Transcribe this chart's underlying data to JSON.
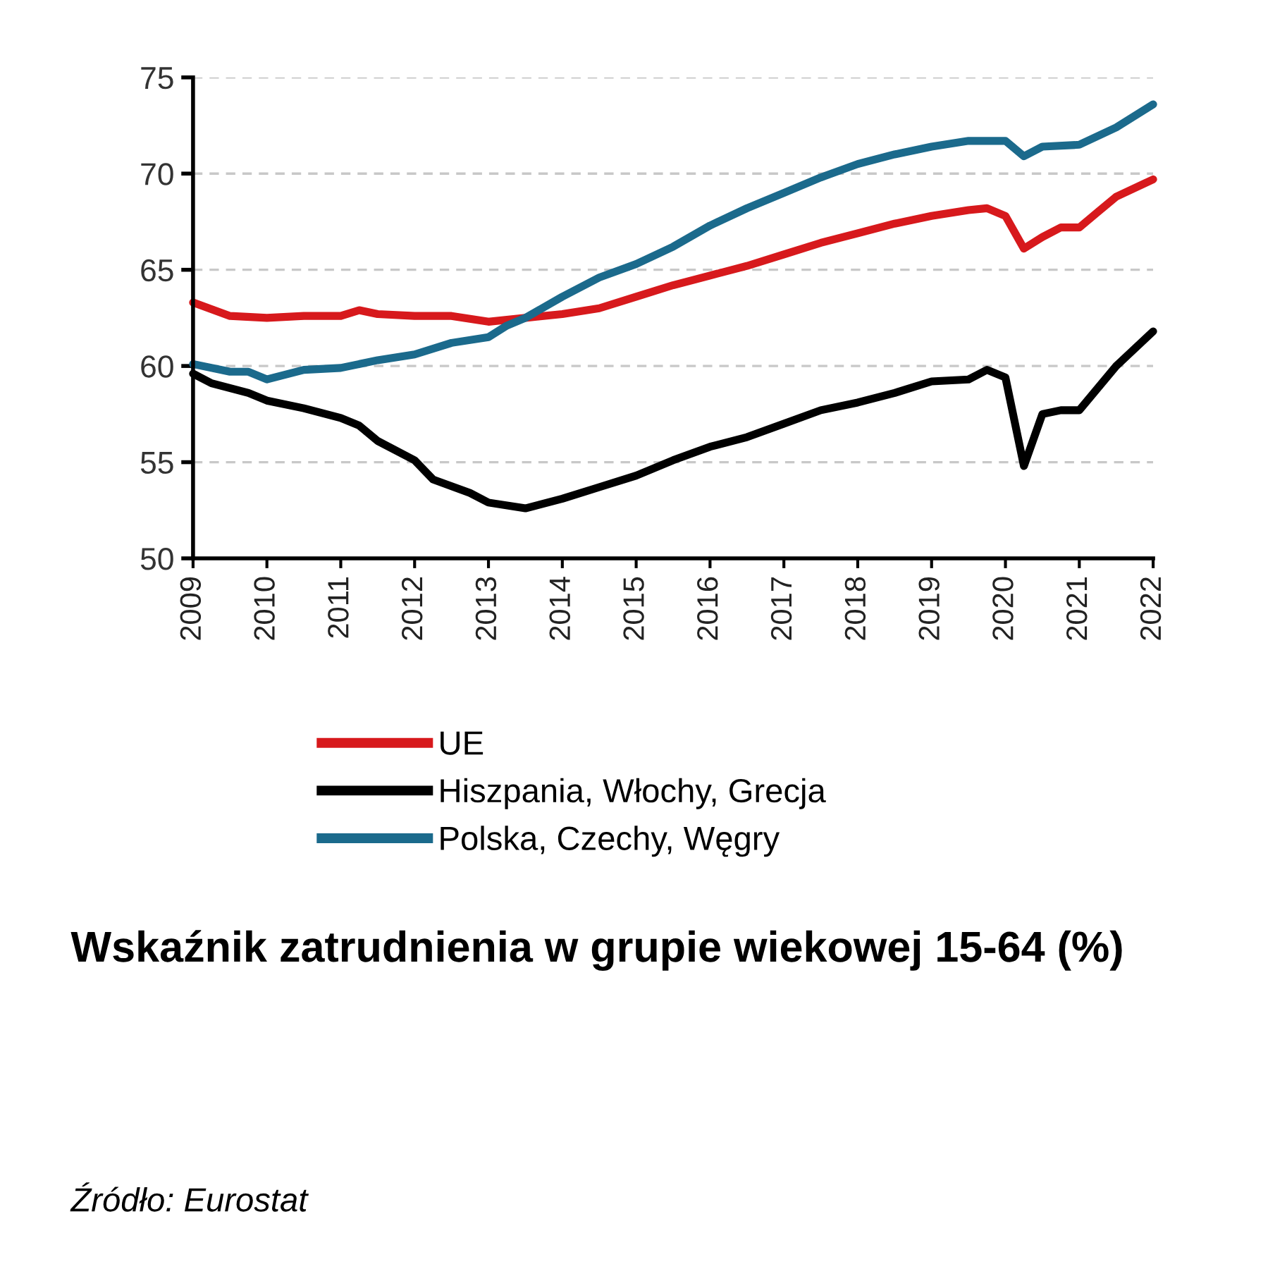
{
  "chart_data": {
    "type": "line",
    "title": "Wskaźnik zatrudnienia w grupie wiekowej 15-64 (%)",
    "annotations": [
      "Źródło: Eurostat"
    ],
    "xlim": [
      2009,
      2022
    ],
    "xticks": [
      2009,
      2010,
      2011,
      2012,
      2013,
      2014,
      2015,
      2016,
      2017,
      2018,
      2019,
      2020,
      2021,
      2022
    ],
    "ylim": [
      50,
      75
    ],
    "yticks": [
      50,
      55,
      60,
      65,
      70,
      75
    ],
    "grid": "y",
    "legend": "bottom",
    "line_style": "solid",
    "marker": "none",
    "series": [
      {
        "name": "UE",
        "color": "#d7191c",
        "x": [
          2009,
          2009.5,
          2010,
          2010.5,
          2011,
          2011.25,
          2011.5,
          2012,
          2012.5,
          2013,
          2013.5,
          2014,
          2014.5,
          2015,
          2015.5,
          2016,
          2016.5,
          2017,
          2017.5,
          2018,
          2018.5,
          2019,
          2019.5,
          2019.75,
          2020,
          2020.25,
          2020.5,
          2020.75,
          2021,
          2021.25,
          2021.5,
          2022
        ],
        "values": [
          63.3,
          62.6,
          62.5,
          62.6,
          62.6,
          62.9,
          62.7,
          62.6,
          62.6,
          62.3,
          62.5,
          62.7,
          63.0,
          63.6,
          64.2,
          64.7,
          65.2,
          65.8,
          66.4,
          66.9,
          67.4,
          67.8,
          68.1,
          68.2,
          67.8,
          66.1,
          66.7,
          67.2,
          67.2,
          68.0,
          68.8,
          69.7
        ]
      },
      {
        "name": "Hiszpania, Włochy, Grecja",
        "color": "#000000",
        "x": [
          2009,
          2009.25,
          2009.75,
          2010,
          2010.5,
          2011,
          2011.25,
          2011.5,
          2012,
          2012.25,
          2012.75,
          2013,
          2013.5,
          2014,
          2014.5,
          2015,
          2015.5,
          2016,
          2016.5,
          2017,
          2017.5,
          2018,
          2018.5,
          2019,
          2019.5,
          2019.75,
          2020,
          2020.25,
          2020.5,
          2020.75,
          2021,
          2021.5,
          2022
        ],
        "values": [
          59.6,
          59.1,
          58.6,
          58.2,
          57.8,
          57.3,
          56.9,
          56.1,
          55.1,
          54.1,
          53.4,
          52.9,
          52.6,
          53.1,
          53.7,
          54.3,
          55.1,
          55.8,
          56.3,
          57.0,
          57.7,
          58.1,
          58.6,
          59.2,
          59.3,
          59.8,
          59.4,
          54.8,
          57.5,
          57.7,
          57.7,
          60.0,
          61.8
        ]
      },
      {
        "name": "Polska, Czechy, Węgry",
        "color": "#1b6a8c",
        "x": [
          2009,
          2009.5,
          2009.75,
          2010,
          2010.5,
          2011,
          2011.5,
          2012,
          2012.5,
          2013,
          2013.25,
          2013.5,
          2014,
          2014.5,
          2015,
          2015.5,
          2016,
          2016.5,
          2017,
          2017.5,
          2018,
          2018.5,
          2019,
          2019.5,
          2020,
          2020.25,
          2020.5,
          2021,
          2021.5,
          2022
        ],
        "values": [
          60.1,
          59.7,
          59.7,
          59.3,
          59.8,
          59.9,
          60.3,
          60.6,
          61.2,
          61.5,
          62.1,
          62.5,
          63.6,
          64.6,
          65.3,
          66.2,
          67.3,
          68.2,
          69.0,
          69.8,
          70.5,
          71.0,
          71.4,
          71.7,
          71.7,
          70.9,
          71.4,
          71.5,
          72.4,
          73.6
        ]
      }
    ]
  }
}
